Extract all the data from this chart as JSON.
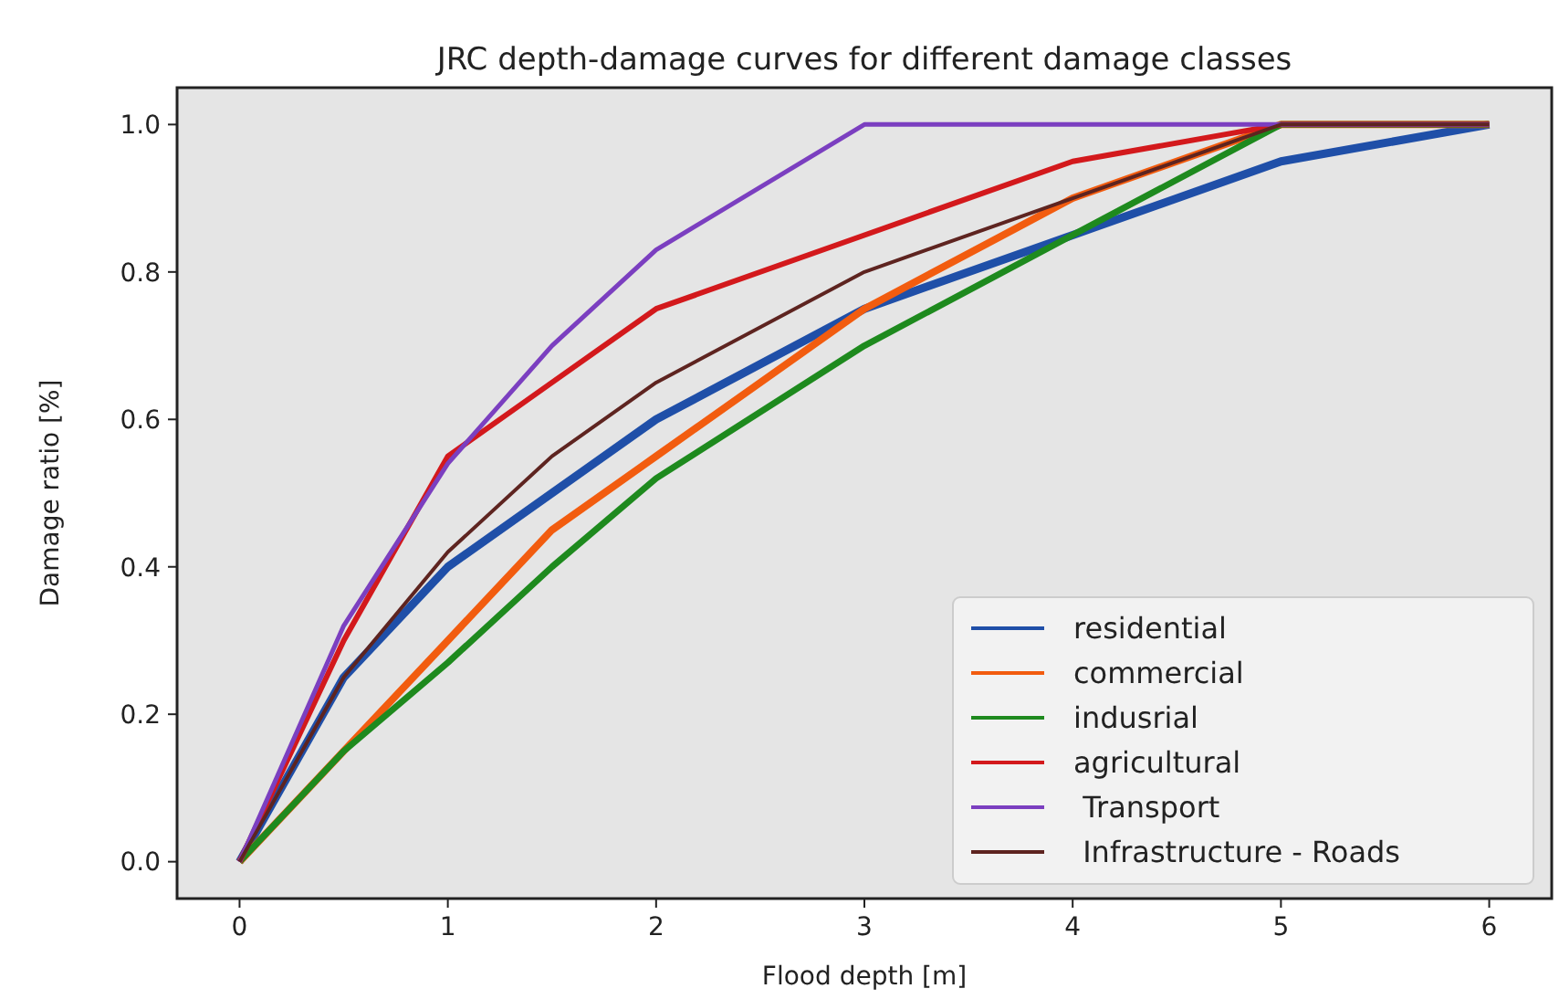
{
  "chart_data": {
    "type": "line",
    "title": "JRC depth-damage curves for different damage classes",
    "xlabel": "Flood depth [m]",
    "ylabel": "Damage ratio [%]",
    "x": [
      0,
      0.5,
      1,
      1.5,
      2,
      3,
      4,
      5,
      6
    ],
    "xlim": [
      -0.3,
      6.3
    ],
    "xticks": [
      0,
      1,
      2,
      3,
      4,
      5,
      6
    ],
    "ylim": [
      -0.05,
      1.05
    ],
    "yticks": [
      {
        "value": 0,
        "label": "0.0"
      },
      0.2,
      0.4,
      0.6,
      0.8,
      {
        "value": 1,
        "label": "1.0"
      }
    ],
    "grid": false,
    "legend": "bottom right",
    "series": [
      {
        "name": "residential",
        "color": "#1f4fa8",
        "values": [
          0,
          0.25,
          0.4,
          0.5,
          0.6,
          0.75,
          0.85,
          0.95,
          1.0
        ]
      },
      {
        "name": "commercial",
        "color": "#f25c0f",
        "values": [
          0,
          0.15,
          0.3,
          0.45,
          0.55,
          0.75,
          0.9,
          1.0,
          1.0
        ]
      },
      {
        "name": "indusrial",
        "color": "#1e8a1e",
        "values": [
          0,
          0.15,
          0.27,
          0.4,
          0.52,
          0.7,
          0.85,
          1.0,
          1.0
        ]
      },
      {
        "name": "agricultural",
        "color": "#d3191c",
        "values": [
          0,
          0.3,
          0.55,
          0.65,
          0.75,
          0.85,
          0.95,
          1.0,
          1.0
        ]
      },
      {
        "name": " Transport",
        "color": "#7b3fc0",
        "values": [
          0,
          0.32,
          0.54,
          0.7,
          0.83,
          1.0,
          1.0,
          1.0,
          1.0
        ]
      },
      {
        "name": " Infrastructure - Roads",
        "color": "#5e2420",
        "values": [
          0,
          0.25,
          0.42,
          0.55,
          0.65,
          0.8,
          0.9,
          1.0,
          1.0
        ]
      }
    ]
  }
}
